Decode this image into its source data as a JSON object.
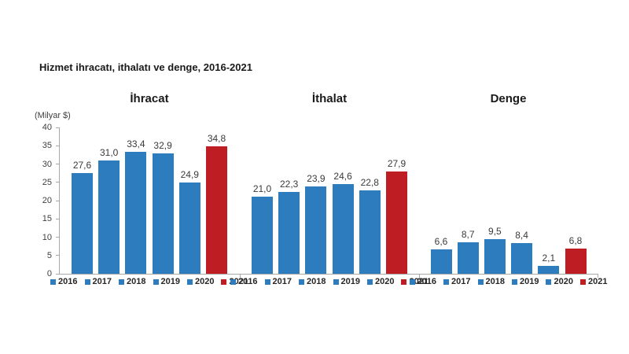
{
  "page": {
    "title": "Hizmet ihracatı, ithalatı ve denge, 2016-2021"
  },
  "chart_data": {
    "type": "bar",
    "title": "Hizmet ihracatı, ithalatı ve denge, 2016-2021",
    "unit_label": "(Milyar $)",
    "categories": [
      "2016",
      "2017",
      "2018",
      "2019",
      "2020",
      "2021"
    ],
    "groups": [
      {
        "title": "İhracat",
        "values": [
          27.6,
          31.0,
          33.4,
          32.9,
          24.9,
          34.8
        ]
      },
      {
        "title": "İthalat",
        "values": [
          21.0,
          22.3,
          23.9,
          24.6,
          22.8,
          27.9
        ]
      },
      {
        "title": "Denge",
        "values": [
          6.6,
          8.7,
          9.5,
          8.4,
          2.1,
          6.8
        ]
      }
    ],
    "value_label_decimal_separator": ",",
    "ylim": [
      0,
      40
    ],
    "ytick_step": 5,
    "grid": false,
    "legend_position": "below-each-group",
    "highlight_category": "2021",
    "colors": {
      "bar_default": "#2d7dbe",
      "bar_highlight": "#be1e23",
      "axis": "#a8a8a8",
      "text": "#3f3f3f"
    }
  }
}
